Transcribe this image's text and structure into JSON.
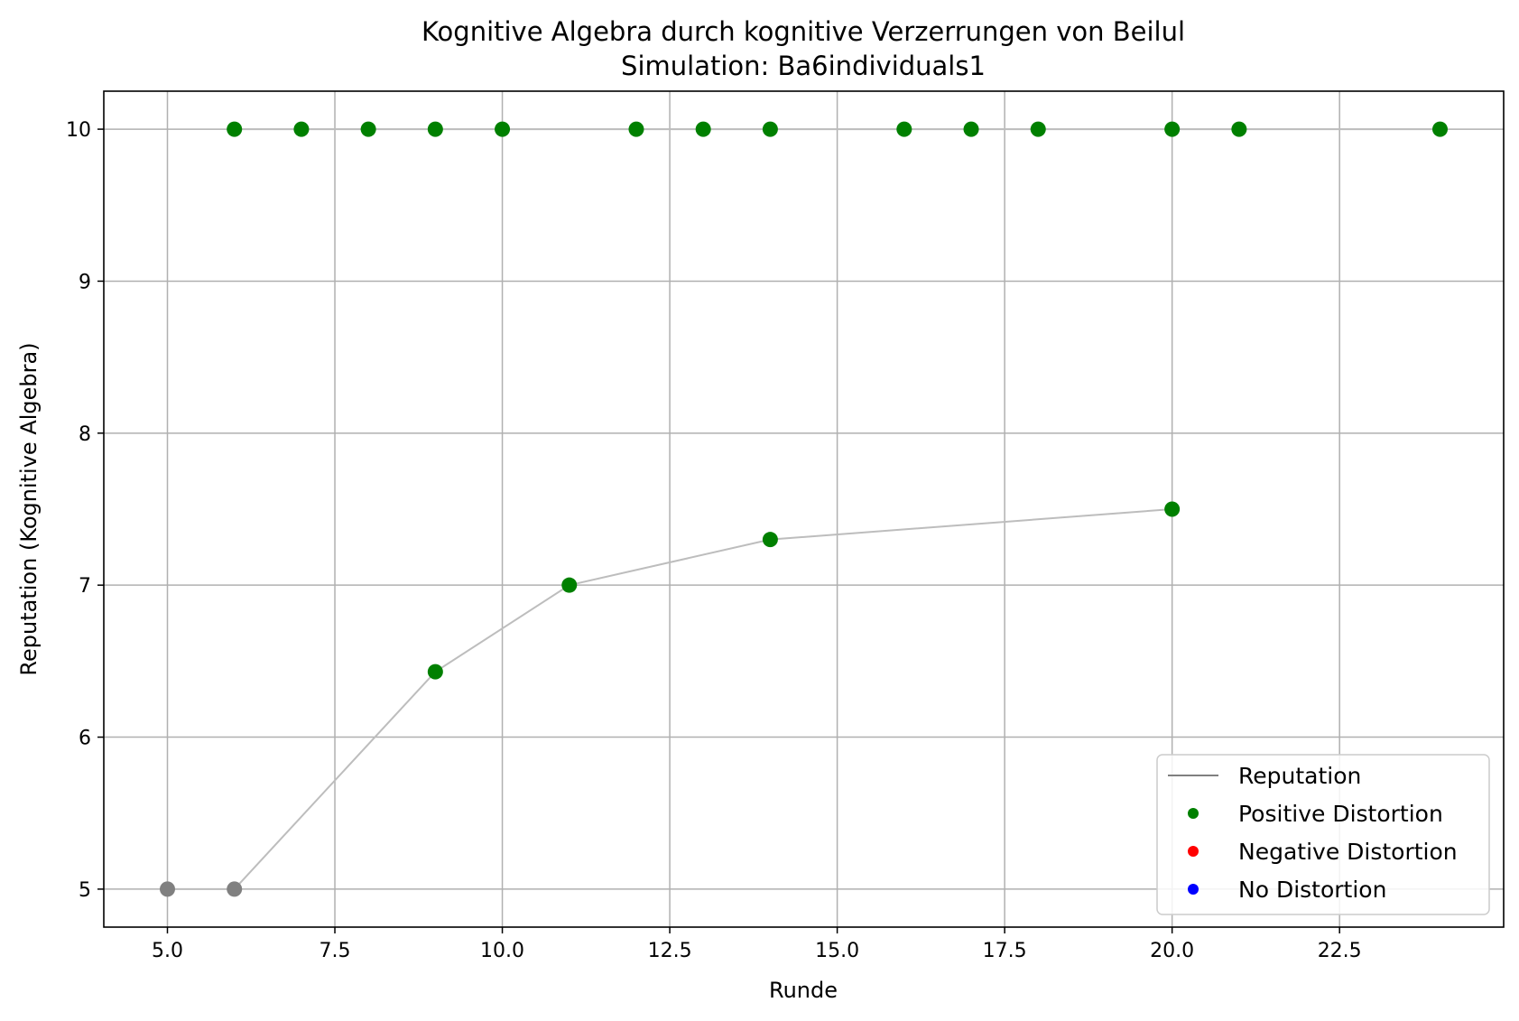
{
  "chart_data": {
    "type": "scatter",
    "title": "Kognitive Algebra durch kognitive Verzerrungen von Beilul",
    "subtitle": "Simulation: Ba6individuals1",
    "xlabel": "Runde",
    "ylabel": "Reputation (Kognitive Algebra)",
    "xlim": [
      4.05,
      24.95
    ],
    "ylim": [
      4.75,
      10.25
    ],
    "x_ticks": [
      5.0,
      7.5,
      10.0,
      12.5,
      15.0,
      17.5,
      20.0,
      22.5
    ],
    "x_tick_labels": [
      "5.0",
      "7.5",
      "10.0",
      "12.5",
      "15.0",
      "17.5",
      "20.0",
      "22.5"
    ],
    "y_ticks": [
      5,
      6,
      7,
      8,
      9,
      10
    ],
    "y_tick_labels": [
      "5",
      "6",
      "7",
      "8",
      "9",
      "10"
    ],
    "grid": true,
    "legend_position": "bottom-right",
    "colors": {
      "reputation_line": "#bdbdbd",
      "legend_line": "#808080",
      "positive": "#008000",
      "negative": "#ff0000",
      "none": "#0000ff",
      "neutral_point": "#808080"
    },
    "series": [
      {
        "name": "Reputation",
        "kind": "line",
        "segments": [
          {
            "x": [
              5,
              6
            ],
            "y": [
              5,
              5
            ]
          },
          {
            "x": [
              6,
              9,
              11,
              14,
              20
            ],
            "y": [
              5,
              6.43,
              7.0,
              7.3,
              7.5
            ]
          },
          {
            "x": [
              6,
              7,
              8,
              9,
              10,
              12,
              13,
              14,
              16,
              17,
              18,
              20,
              21,
              24
            ],
            "y": [
              10,
              10,
              10,
              10,
              10,
              10,
              10,
              10,
              10,
              10,
              10,
              10,
              10,
              10
            ]
          }
        ]
      },
      {
        "name": "Positive Distortion",
        "kind": "points",
        "x": [
          6,
          7,
          8,
          9,
          10,
          12,
          13,
          14,
          16,
          17,
          18,
          20,
          21,
          24,
          9,
          11,
          14,
          20
        ],
        "y": [
          10,
          10,
          10,
          10,
          10,
          10,
          10,
          10,
          10,
          10,
          10,
          10,
          10,
          10,
          6.43,
          7.0,
          7.3,
          7.5
        ]
      },
      {
        "name": "Negative Distortion",
        "kind": "points",
        "x": [],
        "y": []
      },
      {
        "name": "No Distortion",
        "kind": "points",
        "x": [],
        "y": []
      }
    ],
    "neutral_points": {
      "x": [
        5,
        6
      ],
      "y": [
        5,
        5
      ]
    },
    "legend": [
      {
        "label": "Reputation",
        "marker": "line",
        "color": "#808080"
      },
      {
        "label": "Positive Distortion",
        "marker": "dot",
        "color": "#008000"
      },
      {
        "label": "Negative Distortion",
        "marker": "dot",
        "color": "#ff0000"
      },
      {
        "label": "No Distortion",
        "marker": "dot",
        "color": "#0000ff"
      }
    ]
  }
}
